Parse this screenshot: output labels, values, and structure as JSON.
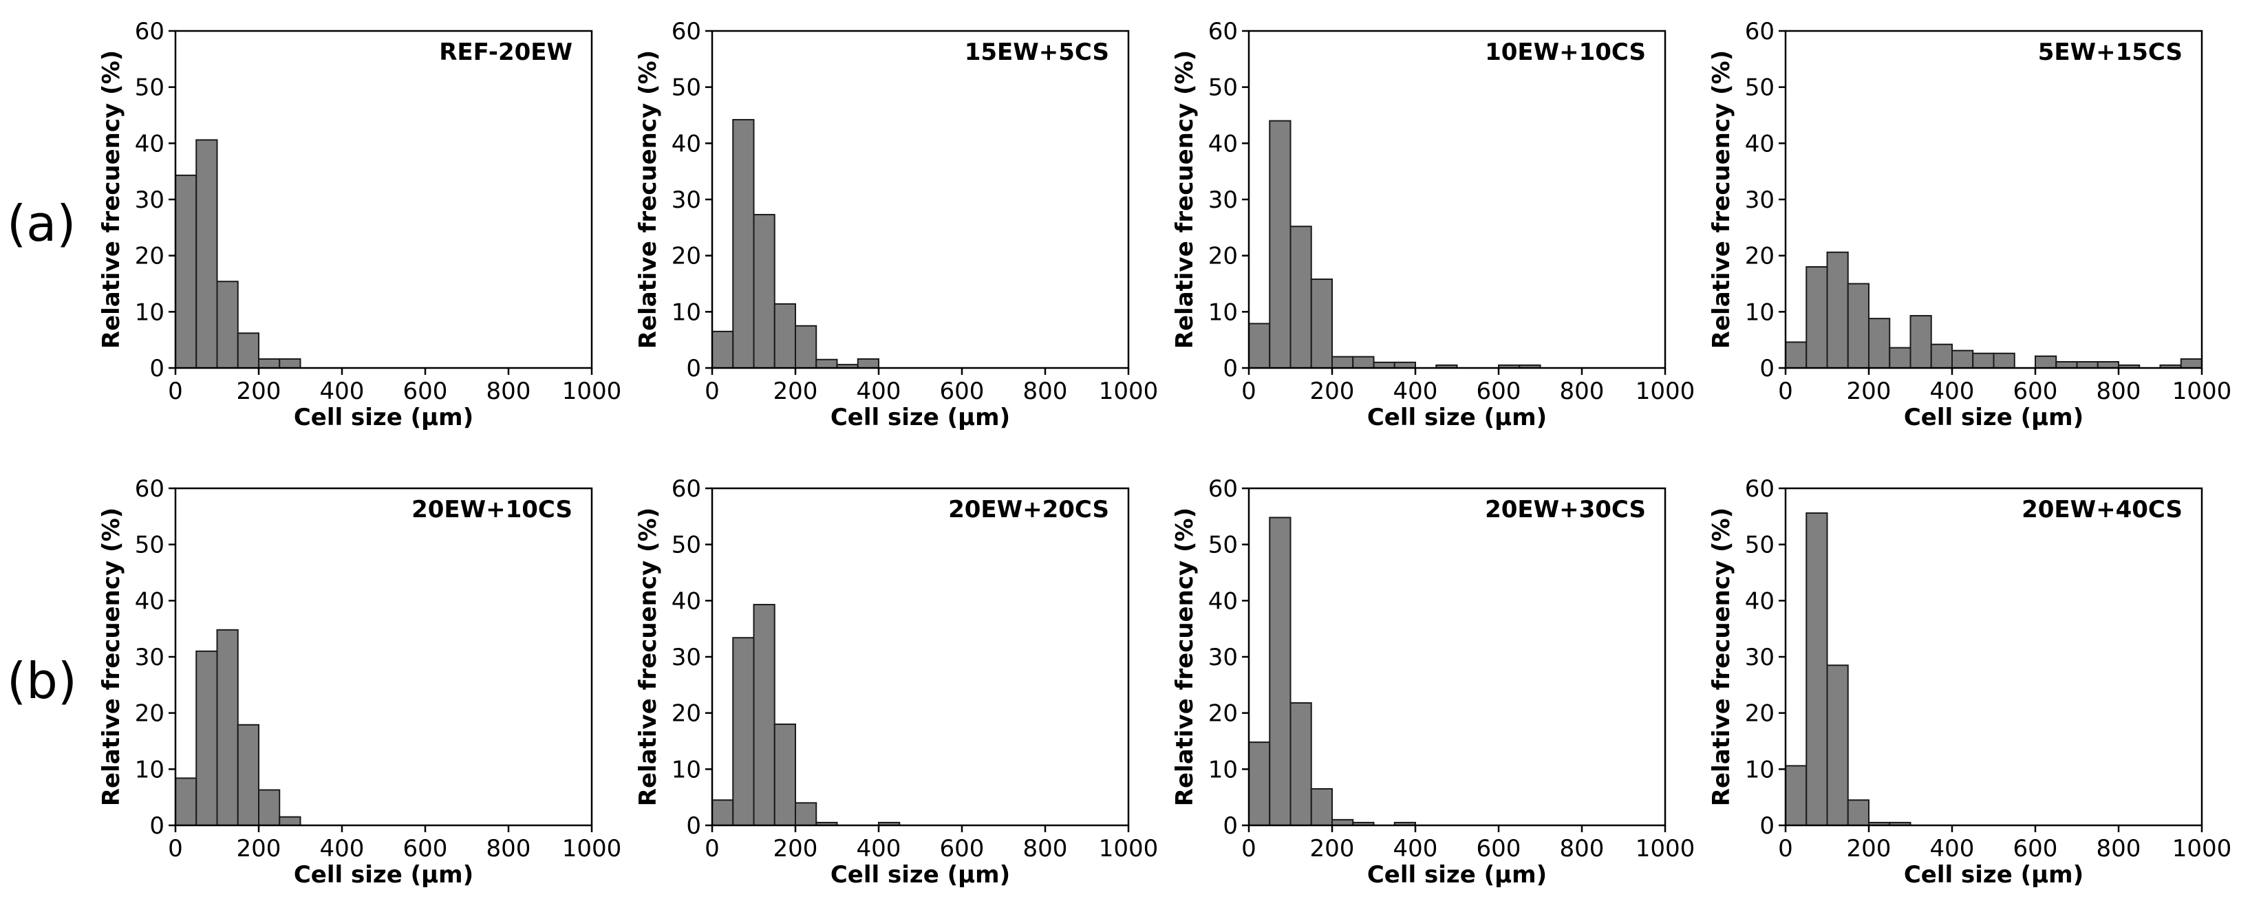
{
  "row_labels": [
    "(a)",
    "(b)"
  ],
  "chart_data": [
    {
      "type": "bar",
      "title": "REF-20EW",
      "row": 0,
      "xlabel": "Cell size (μm)",
      "ylabel": "Relative frecuency (%)",
      "xlim": [
        0,
        1000
      ],
      "ylim": [
        0,
        60
      ],
      "xticks": [
        0,
        200,
        400,
        600,
        800,
        1000
      ],
      "yticks": [
        0,
        10,
        20,
        30,
        40,
        50,
        60
      ],
      "bin_width": 50,
      "bins": [
        [
          0,
          34.3
        ],
        [
          50,
          40.6
        ],
        [
          100,
          15.4
        ],
        [
          150,
          6.2
        ],
        [
          200,
          1.6
        ],
        [
          250,
          1.6
        ]
      ]
    },
    {
      "type": "bar",
      "title": "15EW+5CS",
      "row": 0,
      "xlabel": "Cell size (μm)",
      "ylabel": "Relative frecuency (%)",
      "xlim": [
        0,
        1000
      ],
      "ylim": [
        0,
        60
      ],
      "xticks": [
        0,
        200,
        400,
        600,
        800,
        1000
      ],
      "yticks": [
        0,
        10,
        20,
        30,
        40,
        50,
        60
      ],
      "bin_width": 50,
      "bins": [
        [
          0,
          6.5
        ],
        [
          50,
          44.2
        ],
        [
          100,
          27.3
        ],
        [
          150,
          11.4
        ],
        [
          200,
          7.5
        ],
        [
          250,
          1.5
        ],
        [
          300,
          0.6
        ],
        [
          350,
          1.6
        ]
      ]
    },
    {
      "type": "bar",
      "title": "10EW+10CS",
      "row": 0,
      "xlabel": "Cell size (μm)",
      "ylabel": "Relative frecuency (%)",
      "xlim": [
        0,
        1000
      ],
      "ylim": [
        0,
        60
      ],
      "xticks": [
        0,
        200,
        400,
        600,
        800,
        1000
      ],
      "yticks": [
        0,
        10,
        20,
        30,
        40,
        50,
        60
      ],
      "bin_width": 50,
      "bins": [
        [
          0,
          7.9
        ],
        [
          50,
          44.0
        ],
        [
          100,
          25.2
        ],
        [
          150,
          15.8
        ],
        [
          200,
          2.0
        ],
        [
          250,
          2.0
        ],
        [
          300,
          1.0
        ],
        [
          350,
          1.0
        ],
        [
          450,
          0.5
        ],
        [
          600,
          0.5
        ],
        [
          650,
          0.5
        ]
      ]
    },
    {
      "type": "bar",
      "title": "5EW+15CS",
      "row": 0,
      "xlabel": "Cell size (μm)",
      "ylabel": "Relative frecuency (%)",
      "xlim": [
        0,
        1000
      ],
      "ylim": [
        0,
        60
      ],
      "xticks": [
        0,
        200,
        400,
        600,
        800,
        1000
      ],
      "yticks": [
        0,
        10,
        20,
        30,
        40,
        50,
        60
      ],
      "bin_width": 50,
      "bins": [
        [
          0,
          4.6
        ],
        [
          50,
          18.0
        ],
        [
          100,
          20.6
        ],
        [
          150,
          15.0
        ],
        [
          200,
          8.8
        ],
        [
          250,
          3.6
        ],
        [
          300,
          9.3
        ],
        [
          350,
          4.2
        ],
        [
          400,
          3.1
        ],
        [
          450,
          2.6
        ],
        [
          500,
          2.6
        ],
        [
          600,
          2.1
        ],
        [
          650,
          1.1
        ],
        [
          700,
          1.1
        ],
        [
          750,
          1.1
        ],
        [
          800,
          0.5
        ],
        [
          900,
          0.5
        ],
        [
          950,
          1.6
        ]
      ]
    },
    {
      "type": "bar",
      "title": "20EW+10CS",
      "row": 1,
      "xlabel": "Cell size (μm)",
      "ylabel": "Relative frecuency (%)",
      "xlim": [
        0,
        1000
      ],
      "ylim": [
        0,
        60
      ],
      "xticks": [
        0,
        200,
        400,
        600,
        800,
        1000
      ],
      "yticks": [
        0,
        10,
        20,
        30,
        40,
        50,
        60
      ],
      "bin_width": 50,
      "bins": [
        [
          0,
          8.4
        ],
        [
          50,
          31.0
        ],
        [
          100,
          34.8
        ],
        [
          150,
          17.9
        ],
        [
          200,
          6.3
        ],
        [
          250,
          1.5
        ]
      ]
    },
    {
      "type": "bar",
      "title": "20EW+20CS",
      "row": 1,
      "xlabel": "Cell size (μm)",
      "ylabel": "Relative frecuency (%)",
      "xlim": [
        0,
        1000
      ],
      "ylim": [
        0,
        60
      ],
      "xticks": [
        0,
        200,
        400,
        600,
        800,
        1000
      ],
      "yticks": [
        0,
        10,
        20,
        30,
        40,
        50,
        60
      ],
      "bin_width": 50,
      "bins": [
        [
          0,
          4.5
        ],
        [
          50,
          33.4
        ],
        [
          100,
          39.3
        ],
        [
          150,
          18.0
        ],
        [
          200,
          4.0
        ],
        [
          250,
          0.5
        ],
        [
          400,
          0.5
        ]
      ]
    },
    {
      "type": "bar",
      "title": "20EW+30CS",
      "row": 1,
      "xlabel": "Cell size (μm)",
      "ylabel": "Relative frecuency (%)",
      "xlim": [
        0,
        1000
      ],
      "ylim": [
        0,
        60
      ],
      "xticks": [
        0,
        200,
        400,
        600,
        800,
        1000
      ],
      "yticks": [
        0,
        10,
        20,
        30,
        40,
        50,
        60
      ],
      "bin_width": 50,
      "bins": [
        [
          0,
          14.8
        ],
        [
          50,
          54.8
        ],
        [
          100,
          21.8
        ],
        [
          150,
          6.5
        ],
        [
          200,
          1.0
        ],
        [
          250,
          0.5
        ],
        [
          350,
          0.5
        ]
      ]
    },
    {
      "type": "bar",
      "title": "20EW+40CS",
      "row": 1,
      "xlabel": "Cell size (μm)",
      "ylabel": "Relative frecuency (%)",
      "xlim": [
        0,
        1000
      ],
      "ylim": [
        0,
        60
      ],
      "xticks": [
        0,
        200,
        400,
        600,
        800,
        1000
      ],
      "yticks": [
        0,
        10,
        20,
        30,
        40,
        50,
        60
      ],
      "bin_width": 50,
      "bins": [
        [
          0,
          10.6
        ],
        [
          50,
          55.6
        ],
        [
          100,
          28.5
        ],
        [
          150,
          4.5
        ],
        [
          200,
          0.5
        ],
        [
          250,
          0.5
        ]
      ]
    }
  ],
  "colors": {
    "bar_fill": "#808080",
    "bar_stroke": "#1a1a1a",
    "axis": "#000000"
  }
}
